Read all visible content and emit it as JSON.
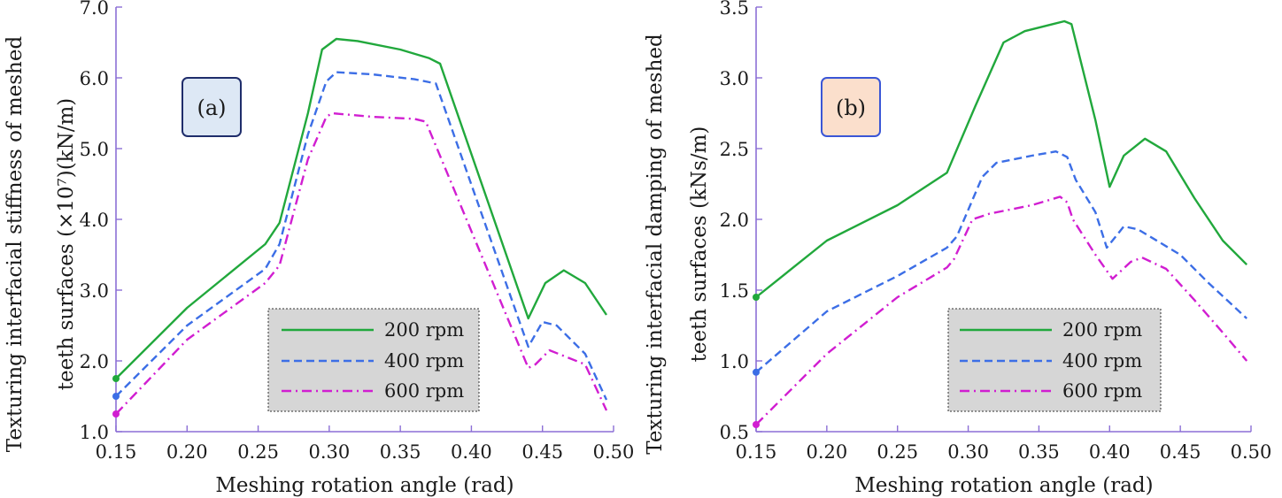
{
  "chart_data": [
    {
      "type": "line",
      "panel_label": "(a)",
      "panel_label_bg": "#dde8f5",
      "panel_label_border": "#1f2d6b",
      "xlabel": "Meshing rotation angle (rad)",
      "ylabel_line1": "Texturing interfacial stiffness of meshed",
      "ylabel_line2": "teeth surfaces (×10⁷)(kN/m)",
      "xlim": [
        0.15,
        0.5
      ],
      "ylim": [
        1.0,
        7.0
      ],
      "xticks": [
        "0.15",
        "0.20",
        "0.25",
        "0.30",
        "0.35",
        "0.40",
        "0.45",
        "0.50"
      ],
      "yticks": [
        "1.0",
        "2.0",
        "3.0",
        "4.0",
        "5.0",
        "6.0",
        "7.0"
      ],
      "legend_position": "bottom-right",
      "series": [
        {
          "name": "200 rpm",
          "color": "#21a83c",
          "style": "solid",
          "points": [
            [
              0.15,
              1.75
            ],
            [
              0.2,
              2.75
            ],
            [
              0.255,
              3.65
            ],
            [
              0.265,
              3.95
            ],
            [
              0.285,
              5.5
            ],
            [
              0.295,
              6.4
            ],
            [
              0.305,
              6.55
            ],
            [
              0.32,
              6.52
            ],
            [
              0.35,
              6.4
            ],
            [
              0.37,
              6.28
            ],
            [
              0.378,
              6.2
            ],
            [
              0.44,
              2.6
            ],
            [
              0.452,
              3.1
            ],
            [
              0.465,
              3.28
            ],
            [
              0.48,
              3.1
            ],
            [
              0.495,
              2.65
            ]
          ]
        },
        {
          "name": "400 rpm",
          "color": "#3c6ee6",
          "style": "dashed",
          "points": [
            [
              0.15,
              1.5
            ],
            [
              0.2,
              2.5
            ],
            [
              0.255,
              3.3
            ],
            [
              0.265,
              3.65
            ],
            [
              0.285,
              5.2
            ],
            [
              0.298,
              5.95
            ],
            [
              0.305,
              6.08
            ],
            [
              0.33,
              6.05
            ],
            [
              0.36,
              5.98
            ],
            [
              0.375,
              5.92
            ],
            [
              0.44,
              2.2
            ],
            [
              0.45,
              2.55
            ],
            [
              0.46,
              2.5
            ],
            [
              0.48,
              2.1
            ],
            [
              0.495,
              1.45
            ]
          ]
        },
        {
          "name": "600 rpm",
          "color": "#d11ed1",
          "style": "dashdot",
          "points": [
            [
              0.15,
              1.25
            ],
            [
              0.2,
              2.3
            ],
            [
              0.255,
              3.1
            ],
            [
              0.265,
              3.35
            ],
            [
              0.285,
              4.85
            ],
            [
              0.298,
              5.45
            ],
            [
              0.302,
              5.5
            ],
            [
              0.33,
              5.45
            ],
            [
              0.36,
              5.42
            ],
            [
              0.368,
              5.38
            ],
            [
              0.44,
              1.9
            ],
            [
              0.445,
              1.95
            ],
            [
              0.455,
              2.15
            ],
            [
              0.48,
              1.95
            ],
            [
              0.495,
              1.3
            ]
          ]
        }
      ]
    },
    {
      "type": "line",
      "panel_label": "(b)",
      "panel_label_bg": "#fbdfcc",
      "panel_label_border": "#3a56d6",
      "xlabel": "Meshing rotation angle (rad)",
      "ylabel_line1": "Texturing interfacial damping of meshed",
      "ylabel_line2": "teeth surfaces (kNs/m)",
      "xlim": [
        0.15,
        0.5
      ],
      "ylim": [
        0.5,
        3.5
      ],
      "xticks": [
        "0.15",
        "0.20",
        "0.25",
        "0.30",
        "0.35",
        "0.40",
        "0.45",
        "0.50"
      ],
      "yticks": [
        "0.5",
        "1.0",
        "1.5",
        "2.0",
        "2.5",
        "3.0",
        "3.5"
      ],
      "legend_position": "bottom-right",
      "series": [
        {
          "name": "200 rpm",
          "color": "#21a83c",
          "style": "solid",
          "points": [
            [
              0.15,
              1.45
            ],
            [
              0.2,
              1.85
            ],
            [
              0.25,
              2.1
            ],
            [
              0.285,
              2.33
            ],
            [
              0.305,
              2.8
            ],
            [
              0.325,
              3.25
            ],
            [
              0.34,
              3.33
            ],
            [
              0.36,
              3.38
            ],
            [
              0.368,
              3.4
            ],
            [
              0.373,
              3.38
            ],
            [
              0.39,
              2.7
            ],
            [
              0.4,
              2.23
            ],
            [
              0.41,
              2.45
            ],
            [
              0.425,
              2.57
            ],
            [
              0.44,
              2.48
            ],
            [
              0.46,
              2.15
            ],
            [
              0.48,
              1.85
            ],
            [
              0.497,
              1.68
            ]
          ]
        },
        {
          "name": "400 rpm",
          "color": "#3c6ee6",
          "style": "dashed",
          "points": [
            [
              0.15,
              0.92
            ],
            [
              0.2,
              1.35
            ],
            [
              0.25,
              1.6
            ],
            [
              0.285,
              1.8
            ],
            [
              0.292,
              1.88
            ],
            [
              0.31,
              2.3
            ],
            [
              0.32,
              2.4
            ],
            [
              0.345,
              2.45
            ],
            [
              0.362,
              2.48
            ],
            [
              0.37,
              2.44
            ],
            [
              0.376,
              2.28
            ],
            [
              0.39,
              2.05
            ],
            [
              0.398,
              1.8
            ],
            [
              0.41,
              1.95
            ],
            [
              0.42,
              1.93
            ],
            [
              0.45,
              1.75
            ],
            [
              0.47,
              1.55
            ],
            [
              0.497,
              1.3
            ]
          ]
        },
        {
          "name": "600 rpm",
          "color": "#d11ed1",
          "style": "dashdot",
          "points": [
            [
              0.15,
              0.55
            ],
            [
              0.2,
              1.05
            ],
            [
              0.25,
              1.45
            ],
            [
              0.285,
              1.66
            ],
            [
              0.29,
              1.72
            ],
            [
              0.303,
              2.0
            ],
            [
              0.315,
              2.04
            ],
            [
              0.345,
              2.1
            ],
            [
              0.365,
              2.16
            ],
            [
              0.37,
              2.12
            ],
            [
              0.374,
              2.0
            ],
            [
              0.39,
              1.75
            ],
            [
              0.402,
              1.58
            ],
            [
              0.415,
              1.7
            ],
            [
              0.423,
              1.73
            ],
            [
              0.44,
              1.65
            ],
            [
              0.46,
              1.43
            ],
            [
              0.48,
              1.2
            ],
            [
              0.497,
              1.0
            ]
          ]
        }
      ]
    }
  ]
}
